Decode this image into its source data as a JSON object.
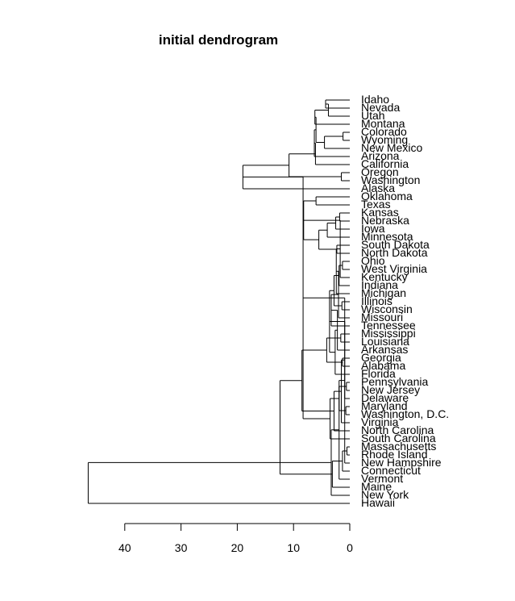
{
  "chart_data": {
    "type": "dendrogram",
    "title": "initial dendrogram",
    "orientation": "horizontal",
    "x_axis": {
      "reversed": true,
      "ticks": [
        40,
        30,
        20,
        10,
        0
      ],
      "range": [
        40,
        0
      ]
    },
    "leaves": [
      "Idaho",
      "Nevada",
      "Utah",
      "Montana",
      "Colorado",
      "Wyoming",
      "New Mexico",
      "Arizona",
      "California",
      "Oregon",
      "Washington",
      "Alaska",
      "Oklahoma",
      "Texas",
      "Kansas",
      "Nebraska",
      "Iowa",
      "Minnesota",
      "South Dakota",
      "North Dakota",
      "Ohio",
      "West Virginia",
      "Kentucky",
      "Indiana",
      "Michigan",
      "Illinois",
      "Wisconsin",
      "Missouri",
      "Tennessee",
      "Mississippi",
      "Louisiana",
      "Arkansas",
      "Georgia",
      "Alabama",
      "Florida",
      "Pennsylvania",
      "New Jersey",
      "Delaware",
      "Maryland",
      "Washington, D.C.",
      "Virginia",
      "North Carolina",
      "South Carolina",
      "Massachusetts",
      "Rhode Island",
      "New Hampshire",
      "Connecticut",
      "Vermont",
      "Maine",
      "New York",
      "Hawaii"
    ],
    "merges": [
      {
        "a": 0,
        "b": 1,
        "h": 4.3
      },
      {
        "a": 51,
        "b": 2,
        "h": 3.8
      },
      {
        "a": 4,
        "b": 5,
        "h": 1.2
      },
      {
        "a": 53,
        "b": 6,
        "h": 4.5
      },
      {
        "a": 52,
        "b": 3,
        "h": 6.2
      },
      {
        "a": 55,
        "b": 54,
        "h": 6.0
      },
      {
        "a": 56,
        "b": 7,
        "h": 6.3
      },
      {
        "a": 57,
        "b": 8,
        "h": 6.1
      },
      {
        "a": 9,
        "b": 10,
        "h": 1.5
      },
      {
        "a": 58,
        "b": 59,
        "h": 10.8
      },
      {
        "a": 60,
        "b": 11,
        "h": 19.0
      },
      {
        "a": 12,
        "b": 13,
        "h": 6.0
      },
      {
        "a": 14,
        "b": 15,
        "h": 1.8
      },
      {
        "a": 63,
        "b": 16,
        "h": 2.5
      },
      {
        "a": 64,
        "b": 17,
        "h": 4.0
      },
      {
        "a": 18,
        "b": 19,
        "h": 2.3
      },
      {
        "a": 65,
        "b": 66,
        "h": 5.5
      },
      {
        "a": 62,
        "b": 67,
        "h": 8.2
      },
      {
        "a": 20,
        "b": 21,
        "h": 1.3
      },
      {
        "a": 68,
        "b": 22,
        "h": 1.7
      },
      {
        "a": 69,
        "b": 23,
        "h": 1.9
      },
      {
        "a": 70,
        "b": 24,
        "h": 2.4
      },
      {
        "a": 25,
        "b": 26,
        "h": 1.4
      },
      {
        "a": 72,
        "b": 27,
        "h": 2.0
      },
      {
        "a": 71,
        "b": 73,
        "h": 2.8
      },
      {
        "a": 74,
        "b": 28,
        "h": 3.3
      },
      {
        "a": 29,
        "b": 30,
        "h": 1.6
      },
      {
        "a": 76,
        "b": 31,
        "h": 2.2
      },
      {
        "a": 32,
        "b": 33,
        "h": 1.3
      },
      {
        "a": 78,
        "b": 34,
        "h": 2.6
      },
      {
        "a": 77,
        "b": 79,
        "h": 4.1
      },
      {
        "a": 75,
        "b": 80,
        "h": 3.6
      },
      {
        "a": 35,
        "b": 36,
        "h": 0.6
      },
      {
        "a": 82,
        "b": 37,
        "h": 0.9
      },
      {
        "a": 38,
        "b": 39,
        "h": 0.7
      },
      {
        "a": 84,
        "b": 40,
        "h": 1.5
      },
      {
        "a": 83,
        "b": 85,
        "h": 1.9
      },
      {
        "a": 86,
        "b": 41,
        "h": 2.8
      },
      {
        "a": 87,
        "b": 42,
        "h": 3.5
      },
      {
        "a": 81,
        "b": 88,
        "h": 8.5
      },
      {
        "a": 61,
        "b": 89,
        "h": 8.3
      },
      {
        "a": 43,
        "b": 44,
        "h": 0.5
      },
      {
        "a": 91,
        "b": 45,
        "h": 0.9
      },
      {
        "a": 92,
        "b": 46,
        "h": 1.3
      },
      {
        "a": 93,
        "b": 47,
        "h": 1.9
      },
      {
        "a": 94,
        "b": 48,
        "h": 3.1
      },
      {
        "a": 95,
        "b": 49,
        "h": 3.3
      },
      {
        "a": 90,
        "b": 96,
        "h": 12.4
      },
      {
        "a": 50,
        "b": 97,
        "h": 46.5
      },
      {
        "a": 98,
        "b": 98,
        "h": 46.5
      }
    ]
  }
}
